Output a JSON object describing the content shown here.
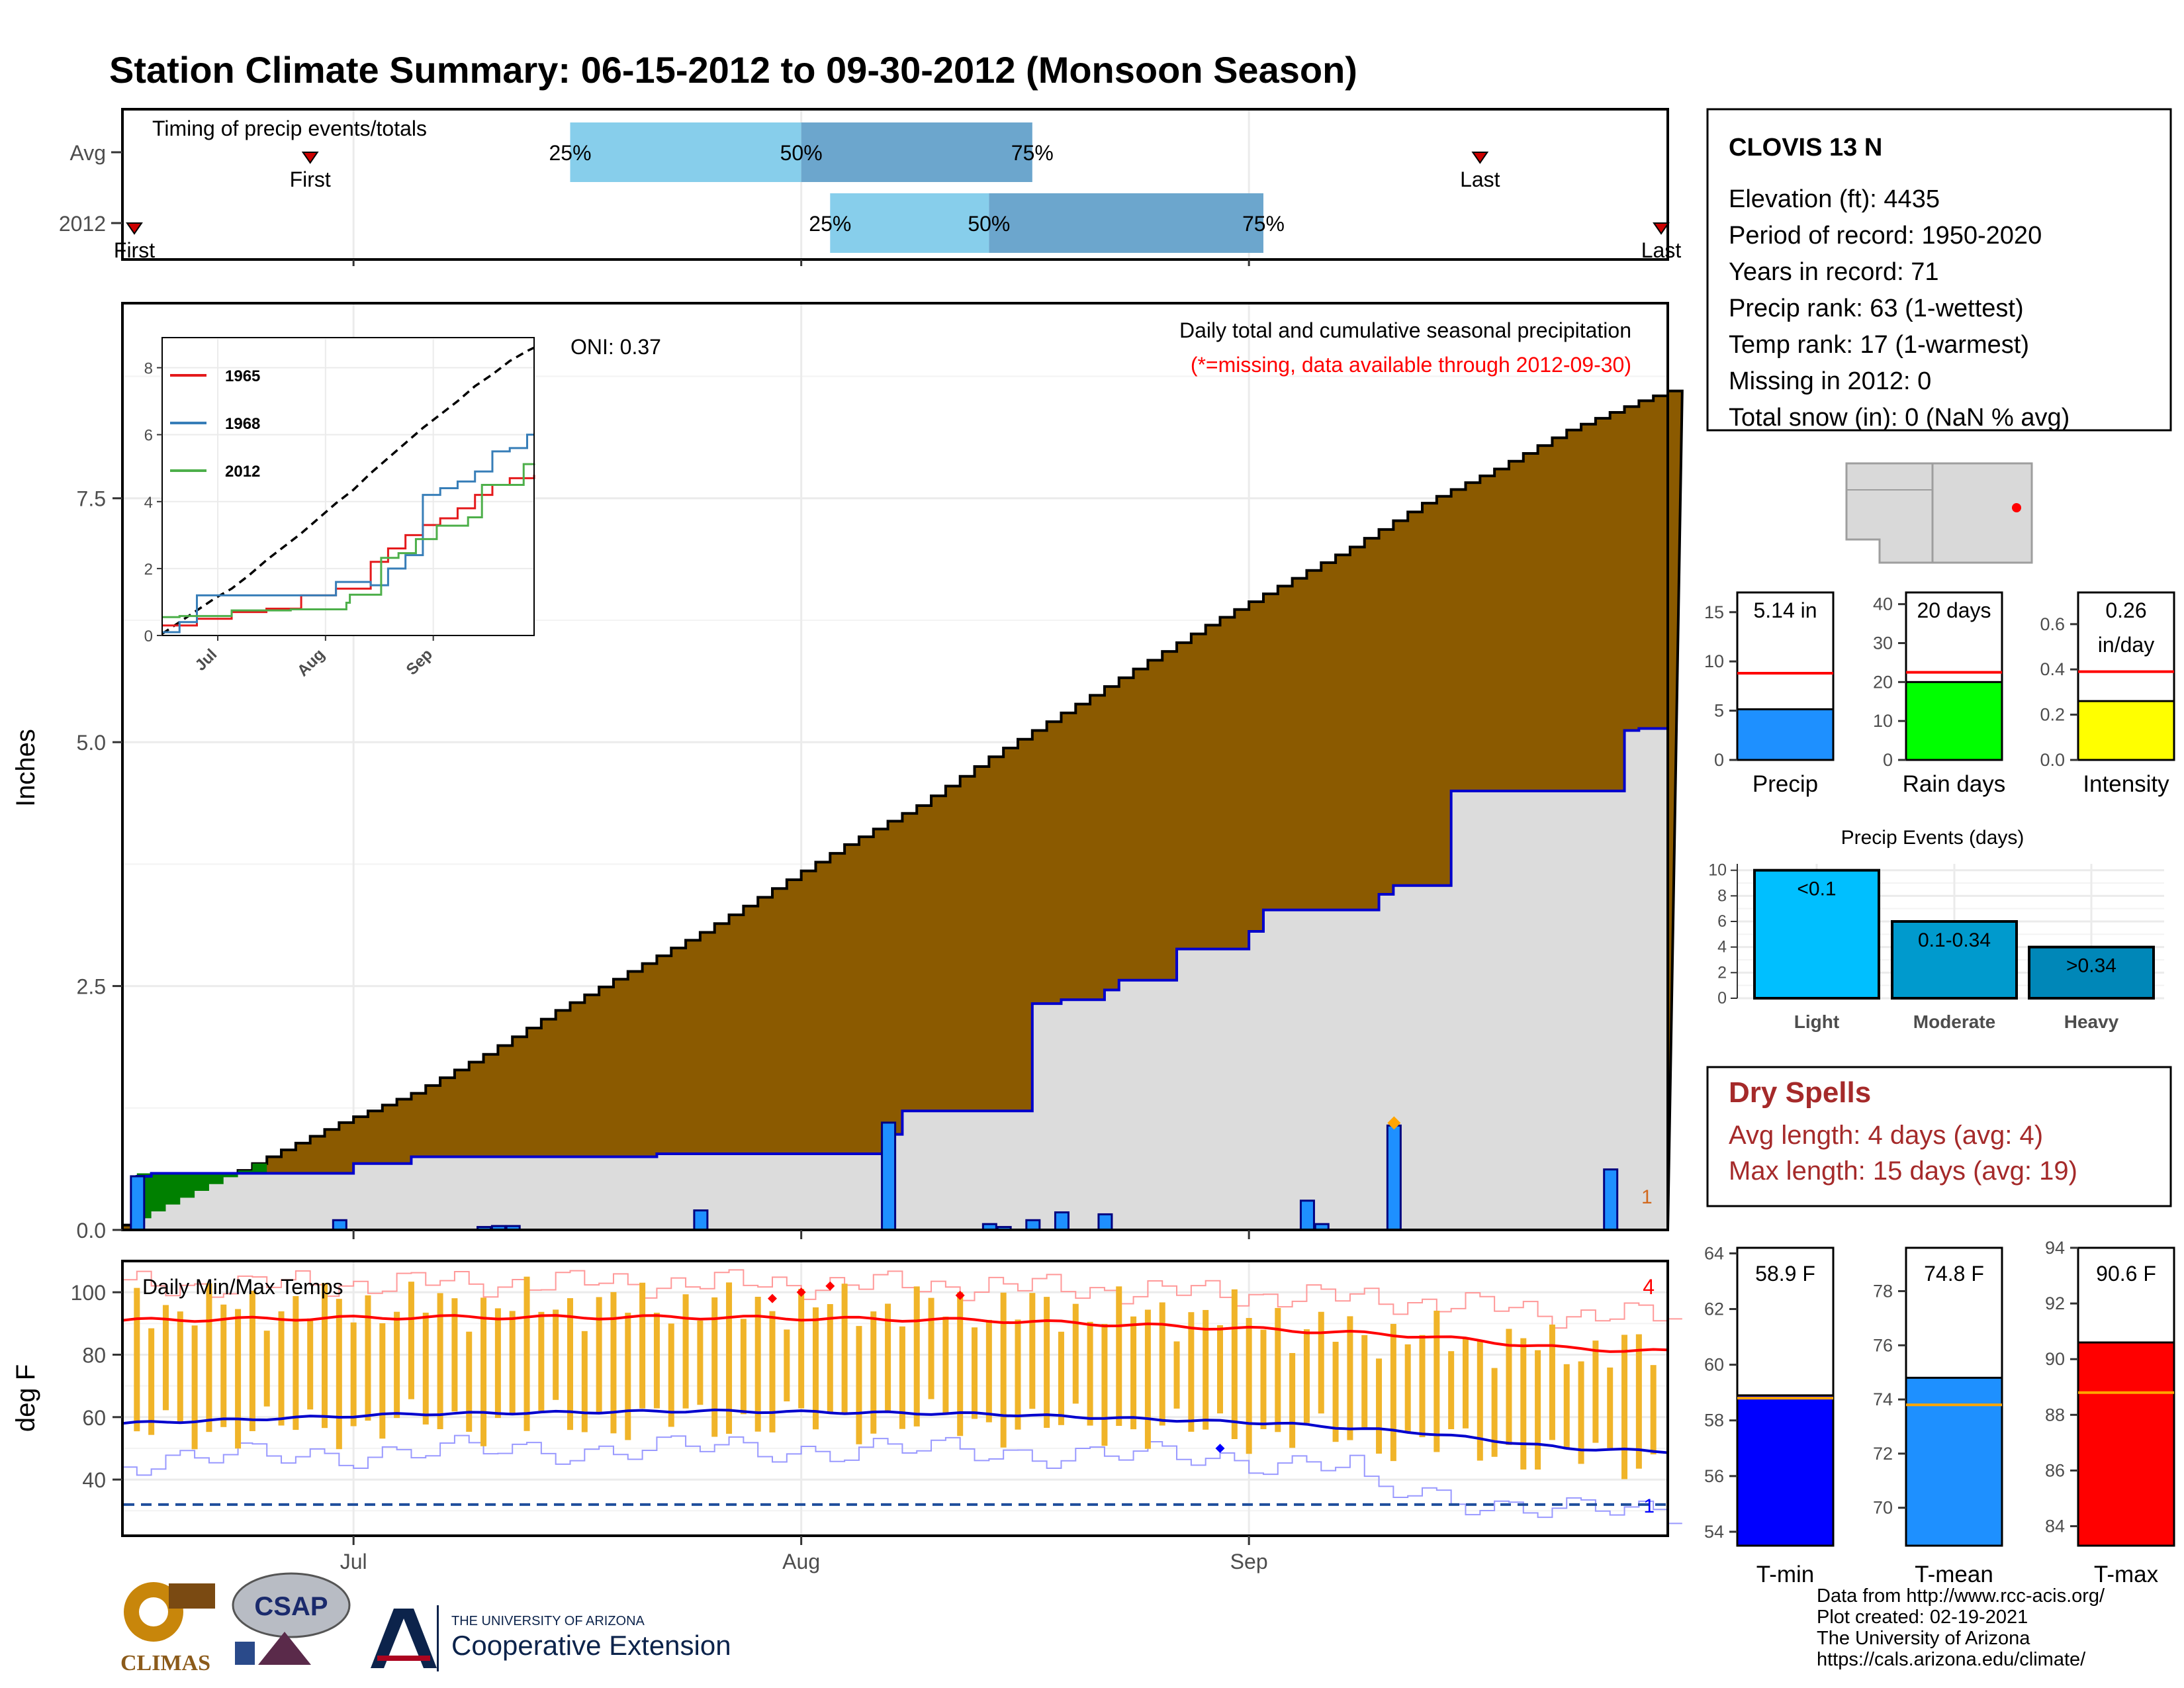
{
  "title": "Station Climate Summary: 06-15-2012 to 09-30-2012 (Monsoon Season)",
  "colors": {
    "title": "#ff0000",
    "cumulative_fill": "#8b5a00",
    "avg_fill": "#dcdcdc",
    "daily_bar": "#1e90ff",
    "timing_light": "#87ceeb",
    "timing_dark": "#6ca6cd",
    "temp_bar": "#f0b429",
    "avg_max": "#ff0000",
    "avg_min": "#0000cd",
    "dry_spells": "#a52a2a"
  },
  "timing": {
    "title": "Timing of precip events/totals",
    "rows": [
      {
        "label": "Avg",
        "first_label": "First",
        "last_label": "Last",
        "p25": "25%",
        "p50": "50%",
        "p75": "75%",
        "first_date": "2012-06-28",
        "last_date": "2012-09-17",
        "q25_date": "2012-07-16",
        "q50_date": "2012-08-01",
        "q75_date": "2012-08-17"
      },
      {
        "label": "2012",
        "first_label": "First",
        "last_label": "Last",
        "p25": "25%",
        "p50": "50%",
        "p75": "75%",
        "first_date": "2012-06-15",
        "last_date": "2012-09-30",
        "q25_date": "2012-08-03",
        "q50_date": "2012-08-14",
        "q75_date": "2012-09-02"
      }
    ]
  },
  "precip_panel": {
    "ylabel": "Inches",
    "oni": "ONI: 0.37",
    "caption": "Daily total and cumulative seasonal precipitation",
    "missing_note": "(*=missing, data available through 2012-09-30)",
    "x_ticks": [
      "Jul",
      "Aug",
      "Sep"
    ],
    "y_ticks": [
      "0.0",
      "2.5",
      "5.0",
      "7.5"
    ],
    "count_label": "1",
    "inset": {
      "y_ticks": [
        "0",
        "2",
        "4",
        "6",
        "8"
      ],
      "x_ticks": [
        "Jul",
        "Aug",
        "Sep"
      ],
      "legend": [
        "1965",
        "1968",
        "2012"
      ]
    }
  },
  "temp_panel": {
    "title": "Daily Min/Max Temps",
    "ylabel": "deg F",
    "y_ticks": [
      "40",
      "60",
      "80",
      "100"
    ],
    "x_ticks": [
      "Jul",
      "Aug",
      "Sep"
    ],
    "record_hi_count": "4",
    "record_lo_count": "1"
  },
  "station": {
    "name": "CLOVIS 13 N",
    "lines": [
      "Elevation (ft): 4435",
      "Period of record: 1950-2020",
      "Years in record: 71",
      "Precip rank: 63 (1-wettest)",
      "Temp rank: 17 (1-warmest)",
      "Missing in 2012: 0",
      "Total snow (in): 0 (NaN % avg)"
    ]
  },
  "season_bars": [
    {
      "label": "Precip",
      "value_text": "5.14 in",
      "value": 5.14,
      "avg": 8.8,
      "ymax": 17,
      "ticks": [
        "0",
        "5",
        "10",
        "15"
      ],
      "tick_values": [
        0,
        5,
        10,
        15
      ],
      "color": "#1e90ff"
    },
    {
      "label": "Rain days",
      "value_text": "20 days",
      "value": 20,
      "avg": 22.5,
      "ymax": 43,
      "ticks": [
        "0",
        "10",
        "20",
        "30",
        "40"
      ],
      "tick_values": [
        0,
        10,
        20,
        30,
        40
      ],
      "color": "#00ff00"
    },
    {
      "label": "Intensity",
      "value_text": "0.26",
      "value_text2": "in/day",
      "value": 0.26,
      "avg": 0.39,
      "ymax": 0.74,
      "ticks": [
        "0.0",
        "0.2",
        "0.4",
        "0.6"
      ],
      "tick_values": [
        0,
        0.2,
        0.4,
        0.6
      ],
      "color": "#ffff00"
    }
  ],
  "events": {
    "title": "Precip Events (days)",
    "ticks": [
      "0",
      "2",
      "4",
      "6",
      "8",
      "10"
    ],
    "bars": [
      {
        "category": "Light",
        "label": "<0.1",
        "value": 10,
        "color": "#00bfff"
      },
      {
        "category": "Moderate",
        "label": "0.1-0.34",
        "value": 6,
        "color": "#009acd"
      },
      {
        "category": "Heavy",
        "label": ">0.34",
        "value": 4,
        "color": "#0087b8"
      }
    ]
  },
  "dry_spells": {
    "title": "Dry Spells",
    "avg_line": "Avg length: 4 days (avg: 4)",
    "max_line": "Max length: 15 days (avg: 19)"
  },
  "temp_bars": [
    {
      "label": "T-min",
      "value_text": "58.9 F",
      "value": 58.9,
      "avg": 58.8,
      "ymin": 53.5,
      "ymax": 64.2,
      "ticks": [
        "54",
        "56",
        "58",
        "60",
        "62",
        "64"
      ],
      "tick_values": [
        54,
        56,
        58,
        60,
        62,
        64
      ],
      "color": "#0000ff"
    },
    {
      "label": "T-mean",
      "value_text": "74.8 F",
      "value": 74.8,
      "avg": 73.8,
      "ymin": 68.6,
      "ymax": 79.6,
      "ticks": [
        "70",
        "72",
        "74",
        "76",
        "78"
      ],
      "tick_values": [
        70,
        72,
        74,
        76,
        78
      ],
      "color": "#1e90ff"
    },
    {
      "label": "T-max",
      "value_text": "90.6 F",
      "value": 90.6,
      "avg": 88.8,
      "ymin": 83.3,
      "ymax": 94.0,
      "ticks": [
        "84",
        "86",
        "88",
        "90",
        "92",
        "94"
      ],
      "tick_values": [
        84,
        86,
        88,
        90,
        92,
        94
      ],
      "color": "#ff0000"
    }
  ],
  "footer": {
    "lines": [
      "Data from http://www.rcc-acis.org/",
      "Plot created: 02-19-2021",
      "The University of Arizona",
      "https://cals.arizona.edu/climate/"
    ],
    "logo_climas": "CLIMAS",
    "logo_csap": "CSAP",
    "logo_ua_small": "THE UNIVERSITY OF ARIZONA",
    "logo_ua_big": "Cooperative Extension"
  },
  "chart_data": {
    "type": "area",
    "start_date": "2012-06-15",
    "end_date": "2012-09-30",
    "series": [
      {
        "name": "Cumulative average precipitation",
        "x_day": [
          0,
          5,
          10,
          15,
          20,
          25,
          30,
          35,
          40,
          45,
          50,
          55,
          60,
          65,
          70,
          75,
          80,
          85,
          90,
          95,
          100,
          105,
          107
        ],
        "values": [
          0.05,
          0.4,
          0.75,
          1.1,
          1.4,
          1.8,
          2.25,
          2.65,
          3.05,
          3.5,
          3.95,
          4.35,
          4.85,
          5.3,
          5.75,
          6.2,
          6.6,
          7.0,
          7.45,
          7.8,
          8.2,
          8.5,
          8.6
        ]
      },
      {
        "name": "2012 cumulative precipitation",
        "x_day": [
          0,
          1,
          2,
          15,
          16,
          20,
          37,
          53,
          54,
          63,
          65,
          68,
          69,
          73,
          78,
          79,
          87,
          88,
          92,
          103,
          104,
          105,
          107
        ],
        "values": [
          0,
          0.55,
          0.58,
          0.58,
          0.68,
          0.75,
          0.78,
          0.98,
          1.22,
          2.32,
          2.36,
          2.46,
          2.56,
          2.88,
          3.06,
          3.28,
          3.44,
          3.53,
          4.5,
          4.5,
          5.12,
          5.14,
          5.14
        ]
      },
      {
        "name": "2012 daily precipitation",
        "x_day": [
          1,
          15,
          25,
          26,
          27,
          40,
          53,
          60,
          61,
          63,
          65,
          68,
          82,
          83,
          88,
          103
        ],
        "values": [
          0.55,
          0.1,
          0.03,
          0.04,
          0.04,
          0.2,
          1.1,
          0.06,
          0.03,
          0.1,
          0.18,
          0.16,
          0.3,
          0.06,
          1.07,
          0.62
        ]
      }
    ],
    "inset_series": [
      {
        "name": "1965",
        "x_day": [
          0,
          10,
          20,
          30,
          40,
          50,
          60,
          65,
          70,
          75,
          80,
          85,
          90,
          95,
          100,
          105,
          107
        ],
        "values": [
          0.3,
          0.5,
          0.7,
          0.8,
          1.2,
          1.4,
          2.2,
          2.6,
          3.0,
          3.3,
          3.5,
          3.8,
          4.2,
          4.5,
          4.7,
          4.7,
          4.8
        ]
      },
      {
        "name": "1968",
        "x_day": [
          0,
          5,
          10,
          25,
          30,
          40,
          50,
          60,
          65,
          70,
          75,
          80,
          85,
          90,
          95,
          100,
          105,
          107
        ],
        "values": [
          0.1,
          0.4,
          1.2,
          1.2,
          1.2,
          1.2,
          1.6,
          1.5,
          2.0,
          2.4,
          4.2,
          4.4,
          4.6,
          4.9,
          5.5,
          5.6,
          6.0,
          6.0
        ]
      },
      {
        "name": "2012",
        "x_day": [
          0,
          5,
          15,
          20,
          37,
          53,
          54,
          63,
          68,
          73,
          79,
          88,
          92,
          103,
          104,
          107
        ],
        "values": [
          0.55,
          0.58,
          0.58,
          0.75,
          0.78,
          0.98,
          1.22,
          2.32,
          2.46,
          2.88,
          3.28,
          3.53,
          4.5,
          4.5,
          5.12,
          5.14
        ]
      }
    ],
    "temps": {
      "avg_max_day": [
        0,
        20,
        40,
        60,
        80,
        90,
        100,
        107
      ],
      "avg_max": [
        91,
        92,
        92,
        91,
        88,
        86,
        82,
        81
      ],
      "avg_min": [
        58,
        61,
        62,
        61,
        58,
        55,
        50,
        49
      ],
      "avg_min_day": [
        0,
        20,
        40,
        60,
        80,
        90,
        100,
        107
      ],
      "freeze_line": 32
    },
    "xlim_days": [
      0,
      107
    ],
    "ylim": [
      0,
      9.5
    ],
    "ylabel": "Inches"
  }
}
